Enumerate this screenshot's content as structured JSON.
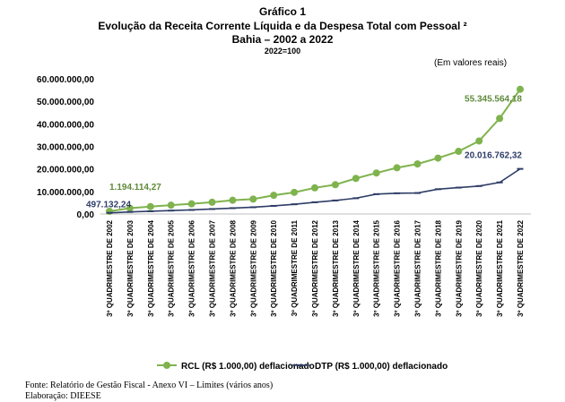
{
  "header": {
    "title": "Gráfico 1",
    "subtitle": "Evolução da Receita Corrente Líquida e da Despesa Total com Pessoal ²",
    "region": "Bahia – 2002 a 2022",
    "base": "2022=100",
    "units": "(Em valores reais)"
  },
  "footer": {
    "source": "Fonte: Relatório de Gestão Fiscal - Anexo VI – Limites (vários anos)",
    "elaboration": "Elaboração: DIEESE"
  },
  "chart_data": {
    "type": "line",
    "categories": [
      "3º QUADRIMESTRE DE 2002",
      "3º QUADRIMESTRE DE 2003",
      "3º QUADRIMESTRE DE 2004",
      "3º QUADRIMESTRE DE 2005",
      "3º QUADRIMESTRE DE 2006",
      "3º QUADRIMESTRE DE 2007",
      "3º QUADRIMESTRE DE 2008",
      "3º QUADRIMESTRE DE 2009",
      "3º QUADRIMESTRE DE 2010",
      "3º QUADRIMESTRE DE 2011",
      "3º QUADRIMESTRE DE 2012",
      "3º QUADRIMESTRE DE 2013",
      "3º QUADRIMESTRE DE 2014",
      "3º QUADRIMESTRE DE 2015",
      "3º QUADRIMESTRE DE 2016",
      "3º QUADRIMESTRE DE 2017",
      "3º QUADRIMESTRE DE 2018",
      "3º QUADRIMESTRE DE 2019",
      "3º QUADRIMESTRE DE 2020",
      "3º QUADRIMESTRE DE 2021",
      "3º QUADRIMESTRE DE 2022"
    ],
    "yticks": [
      "0,00",
      "10.000.000,00",
      "20.000.000,00",
      "30.000.000,00",
      "40.000.000,00",
      "50.000.000,00",
      "60.000.000,00"
    ],
    "ylim": [
      0,
      60000000
    ],
    "grid": false,
    "legend_position": "bottom",
    "series": [
      {
        "name": "RCL (R$ 1.000,00) deflacionado",
        "color": "#7fb34d",
        "marker": "circle",
        "values": [
          1194114,
          2600000,
          3300000,
          3900000,
          4500000,
          5200000,
          6100000,
          6600000,
          8300000,
          9600000,
          11600000,
          13000000,
          15800000,
          18200000,
          20500000,
          22200000,
          24800000,
          27800000,
          32400000,
          42400000,
          55345564
        ]
      },
      {
        "name": "DTP (R$ 1.000,00) deflacionado",
        "color": "#2e3d66",
        "marker": "dash",
        "values": [
          497132,
          900000,
          1200000,
          1500000,
          1800000,
          2200000,
          2600000,
          3000000,
          3600000,
          4300000,
          5200000,
          6000000,
          7000000,
          8800000,
          9200000,
          9300000,
          11000000,
          11700000,
          12400000,
          14000000,
          20016762
        ]
      }
    ],
    "annotations": [
      {
        "text": "1.194.114,27",
        "series": 0,
        "index": 0
      },
      {
        "text": "497.132,24",
        "series": 1,
        "index": 0
      },
      {
        "text": "55.345.564,18",
        "series": 0,
        "index": 20
      },
      {
        "text": "20.016.762,32",
        "series": 1,
        "index": 20
      }
    ]
  }
}
